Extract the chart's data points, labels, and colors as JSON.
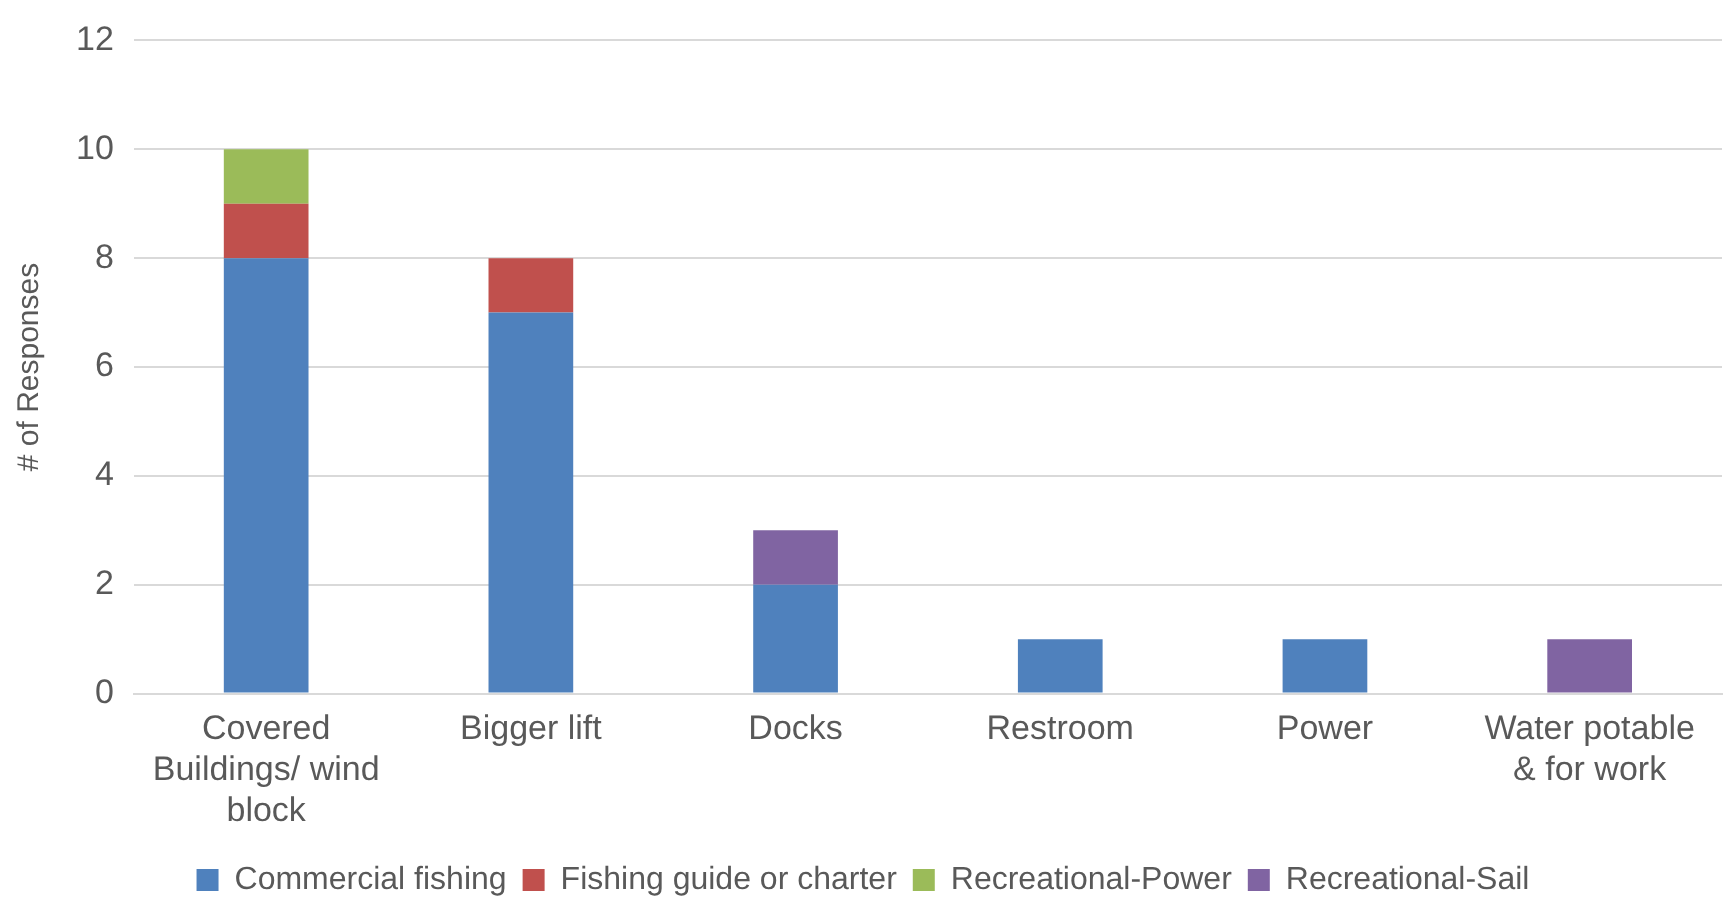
{
  "chart_data": {
    "type": "bar",
    "stacked": true,
    "ylabel": "# of Responses",
    "categories": [
      "Covered Buildings/ wind block",
      "Bigger lift",
      "Docks",
      "Restroom",
      "Power",
      "Water potable & for work"
    ],
    "series": [
      {
        "name": "Commercial fishing",
        "color": "#4f81bd",
        "values": [
          8,
          7,
          2,
          1,
          1,
          0
        ]
      },
      {
        "name": "Fishing guide or charter",
        "color": "#c0504d",
        "values": [
          1,
          1,
          0,
          0,
          0,
          0
        ]
      },
      {
        "name": "Recreational-Power",
        "color": "#9bbb59",
        "values": [
          1,
          0,
          0,
          0,
          0,
          0
        ]
      },
      {
        "name": "Recreational-Sail",
        "color": "#8064a2",
        "values": [
          0,
          0,
          1,
          0,
          0,
          1
        ]
      }
    ],
    "ylim": [
      0,
      12
    ],
    "yticks": [
      0,
      2,
      4,
      6,
      8,
      10,
      12
    ],
    "grid": "y",
    "legend": "bottom"
  }
}
